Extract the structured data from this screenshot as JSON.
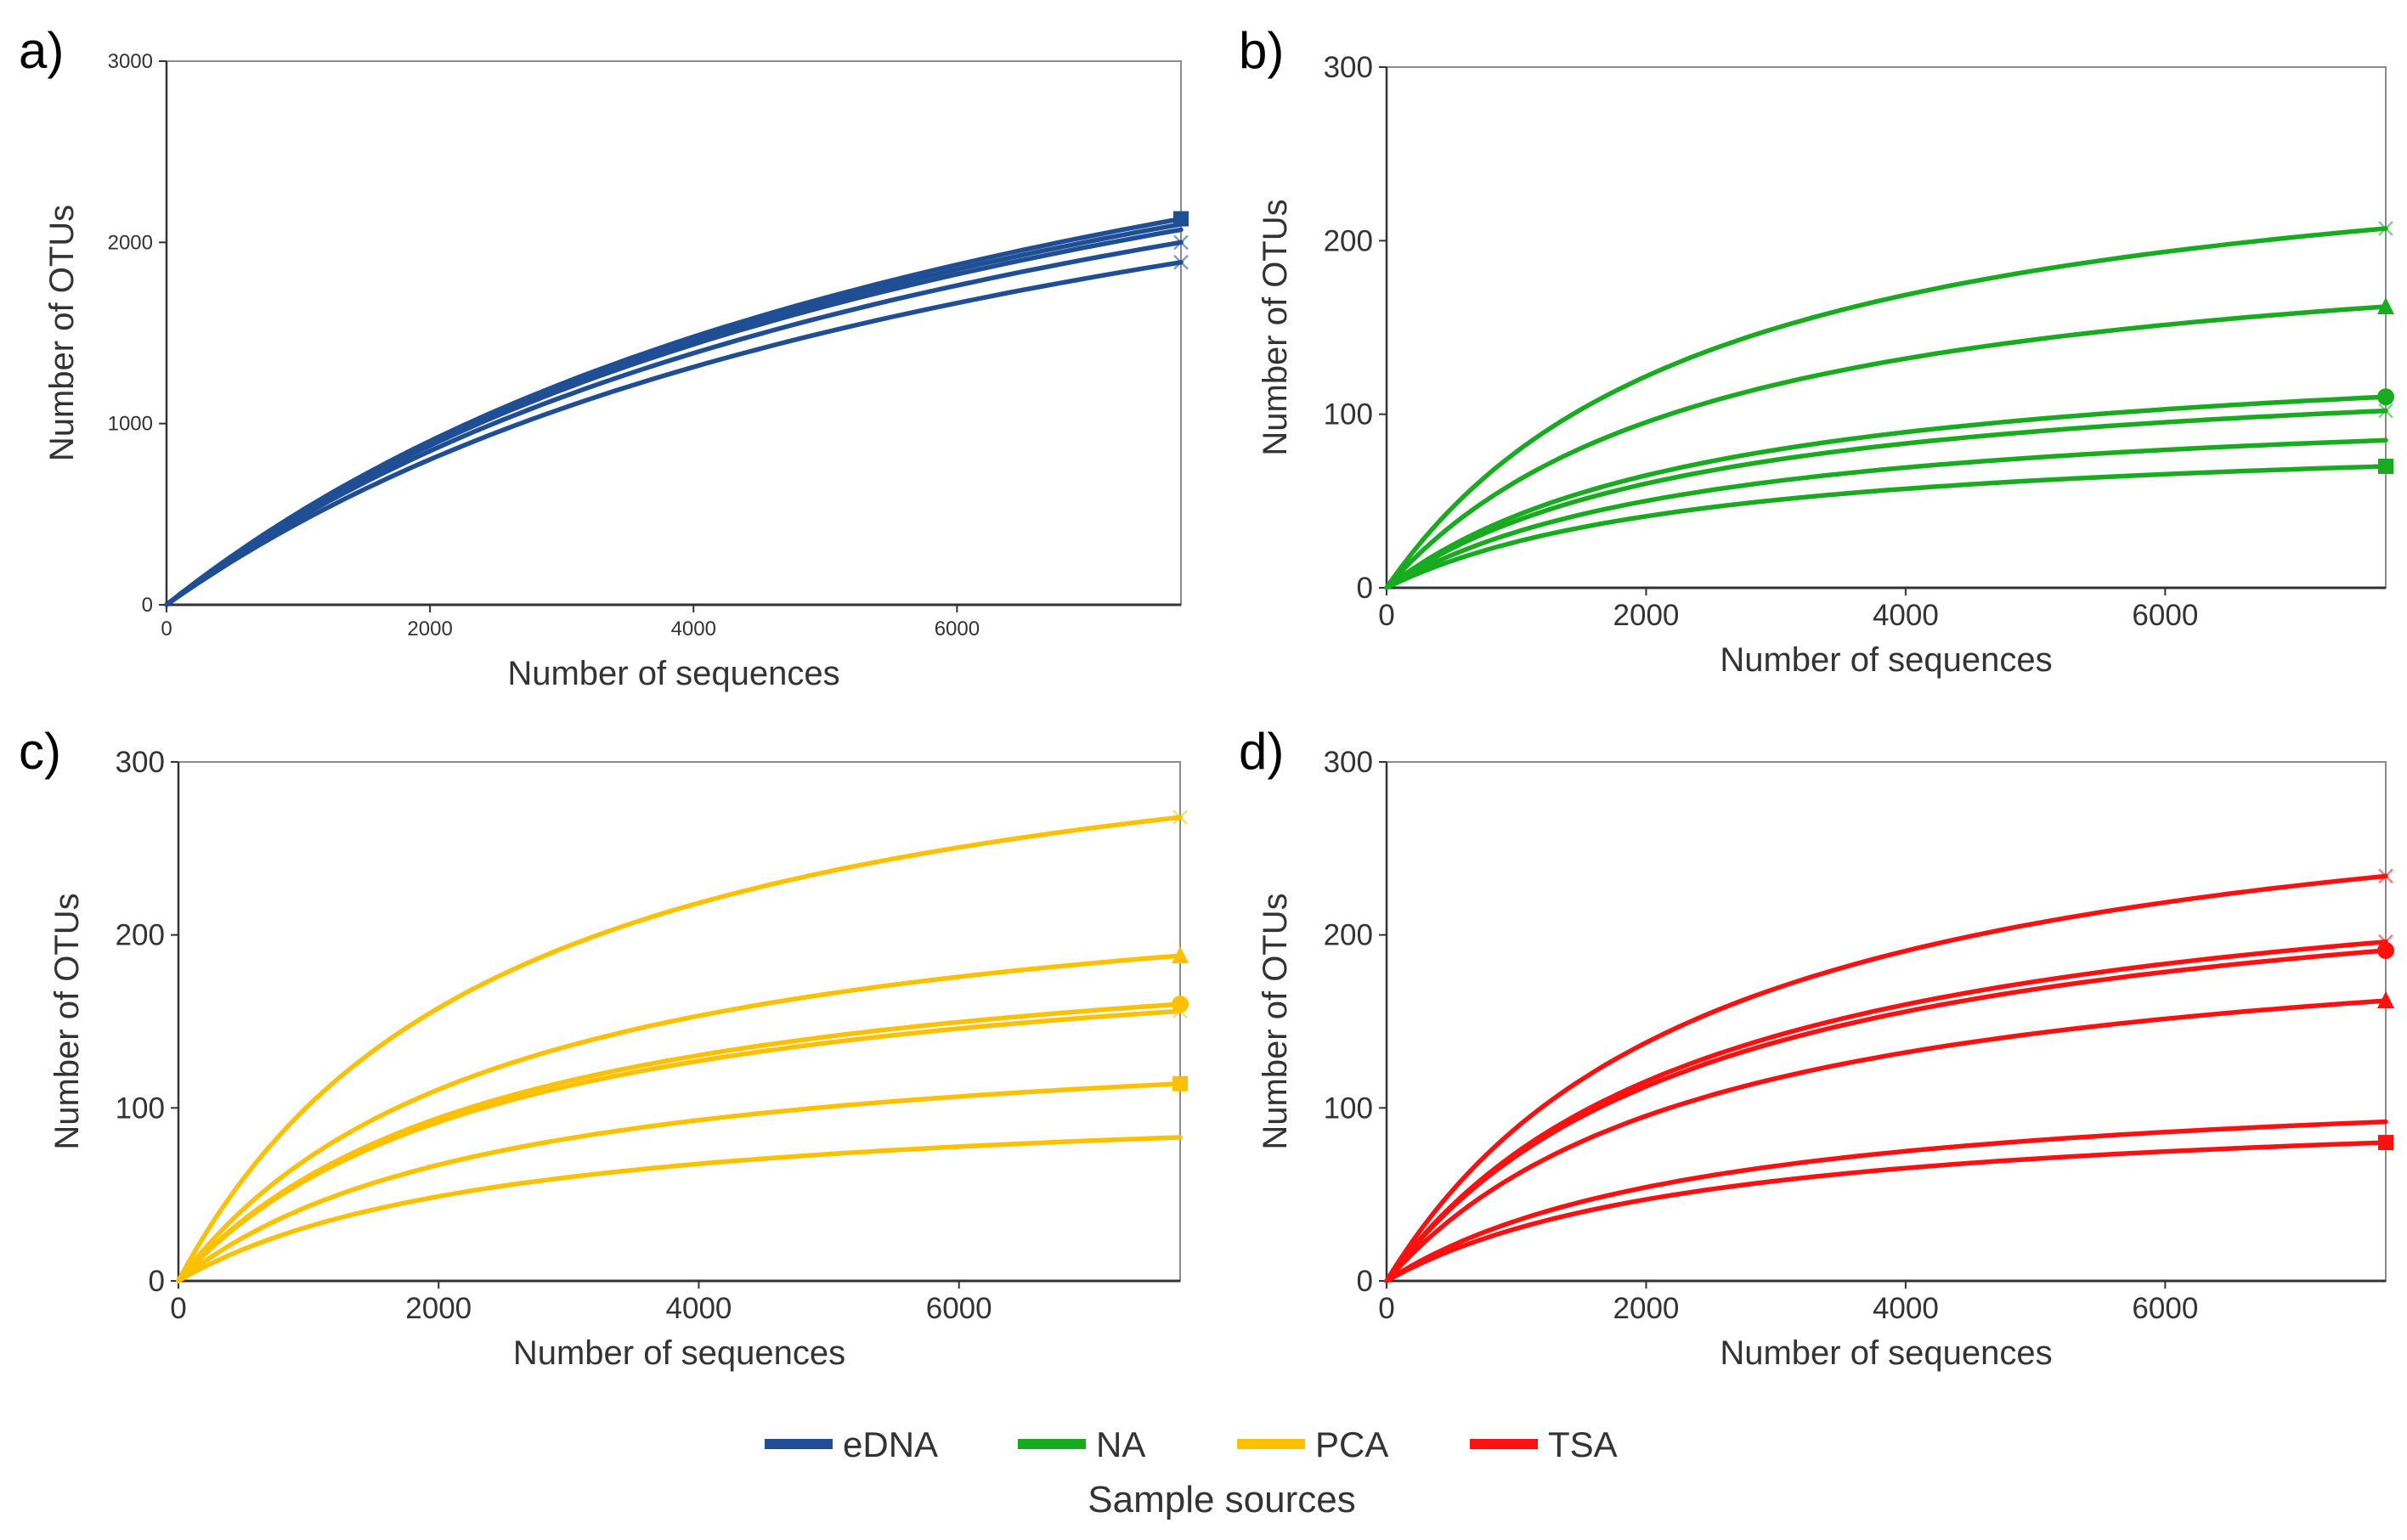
{
  "figure": {
    "legend": {
      "title": "Sample sources",
      "entries": [
        {
          "label": "eDNA",
          "color": "#1f4e94"
        },
        {
          "label": "NA",
          "color": "#19ab1f"
        },
        {
          "label": "PCA",
          "color": "#ffc000"
        },
        {
          "label": "TSA",
          "color": "#ff1010"
        }
      ]
    }
  },
  "chart_data": [
    {
      "type": "line",
      "panel": "a)",
      "source": "eDNA",
      "color": "#1f4e94",
      "xlabel": "Number of sequences",
      "ylabel": "Number of OTUs",
      "xlim": [
        0,
        7700
      ],
      "ylim": [
        0,
        3000
      ],
      "xticks": [
        0,
        2000,
        4000,
        6000
      ],
      "yticks": [
        0,
        1000,
        2000,
        3000
      ],
      "grid": false,
      "series": [
        {
          "name": "eDNA-1",
          "x_end": 7700,
          "y_end": 2130,
          "end_marker": "square"
        },
        {
          "name": "eDNA-2",
          "x_end": 7700,
          "y_end": 2100,
          "end_marker": "none"
        },
        {
          "name": "eDNA-3",
          "x_end": 7700,
          "y_end": 2070,
          "end_marker": "none"
        },
        {
          "name": "eDNA-4",
          "x_end": 7700,
          "y_end": 2000,
          "end_marker": "cross"
        },
        {
          "name": "eDNA-5",
          "x_end": 7700,
          "y_end": 1890,
          "end_marker": "cross"
        }
      ]
    },
    {
      "type": "line",
      "panel": "b)",
      "source": "NA",
      "color": "#19ab1f",
      "xlabel": "Number of sequences",
      "ylabel": "Number of OTUs",
      "xlim": [
        0,
        7700
      ],
      "ylim": [
        0,
        300
      ],
      "xticks": [
        0,
        2000,
        4000,
        6000
      ],
      "yticks": [
        0,
        100,
        200,
        300
      ],
      "grid": false,
      "series": [
        {
          "name": "NA-1",
          "x_end": 7700,
          "y_end": 207,
          "end_marker": "cross"
        },
        {
          "name": "NA-2",
          "x_end": 7700,
          "y_end": 162,
          "end_marker": "triangle"
        },
        {
          "name": "NA-3",
          "x_end": 7700,
          "y_end": 110,
          "end_marker": "circle"
        },
        {
          "name": "NA-4",
          "x_end": 7700,
          "y_end": 102,
          "end_marker": "cross"
        },
        {
          "name": "NA-5",
          "x_end": 7700,
          "y_end": 85,
          "end_marker": "none"
        },
        {
          "name": "NA-6",
          "x_end": 7700,
          "y_end": 70,
          "end_marker": "square"
        }
      ]
    },
    {
      "type": "line",
      "panel": "c)",
      "source": "PCA",
      "color": "#ffc000",
      "xlabel": "Number of sequences",
      "ylabel": "Number of OTUs",
      "xlim": [
        0,
        7700
      ],
      "ylim": [
        0,
        300
      ],
      "xticks": [
        0,
        2000,
        4000,
        6000
      ],
      "yticks": [
        0,
        100,
        200,
        300
      ],
      "grid": false,
      "series": [
        {
          "name": "PCA-1",
          "x_end": 7700,
          "y_end": 268,
          "end_marker": "cross"
        },
        {
          "name": "PCA-2",
          "x_end": 7700,
          "y_end": 188,
          "end_marker": "triangle"
        },
        {
          "name": "PCA-3",
          "x_end": 7700,
          "y_end": 160,
          "end_marker": "circle"
        },
        {
          "name": "PCA-4",
          "x_end": 7700,
          "y_end": 156,
          "end_marker": "cross"
        },
        {
          "name": "PCA-5",
          "x_end": 7700,
          "y_end": 114,
          "end_marker": "square"
        },
        {
          "name": "PCA-6",
          "x_end": 7700,
          "y_end": 83,
          "end_marker": "none"
        }
      ]
    },
    {
      "type": "line",
      "panel": "d)",
      "source": "TSA",
      "color": "#ff1010",
      "xlabel": "Number of sequences",
      "ylabel": "Number of OTUs",
      "xlim": [
        0,
        7700
      ],
      "ylim": [
        0,
        300
      ],
      "xticks": [
        0,
        2000,
        4000,
        6000
      ],
      "yticks": [
        0,
        100,
        200,
        300
      ],
      "grid": false,
      "series": [
        {
          "name": "TSA-1",
          "x_end": 7700,
          "y_end": 234,
          "end_marker": "cross"
        },
        {
          "name": "TSA-2",
          "x_end": 7700,
          "y_end": 196,
          "end_marker": "cross"
        },
        {
          "name": "TSA-3",
          "x_end": 7700,
          "y_end": 191,
          "end_marker": "circle"
        },
        {
          "name": "TSA-4",
          "x_end": 7700,
          "y_end": 162,
          "end_marker": "triangle"
        },
        {
          "name": "TSA-5",
          "x_end": 7700,
          "y_end": 92,
          "end_marker": "none"
        },
        {
          "name": "TSA-6",
          "x_end": 7700,
          "y_end": 80,
          "end_marker": "square"
        }
      ]
    }
  ]
}
